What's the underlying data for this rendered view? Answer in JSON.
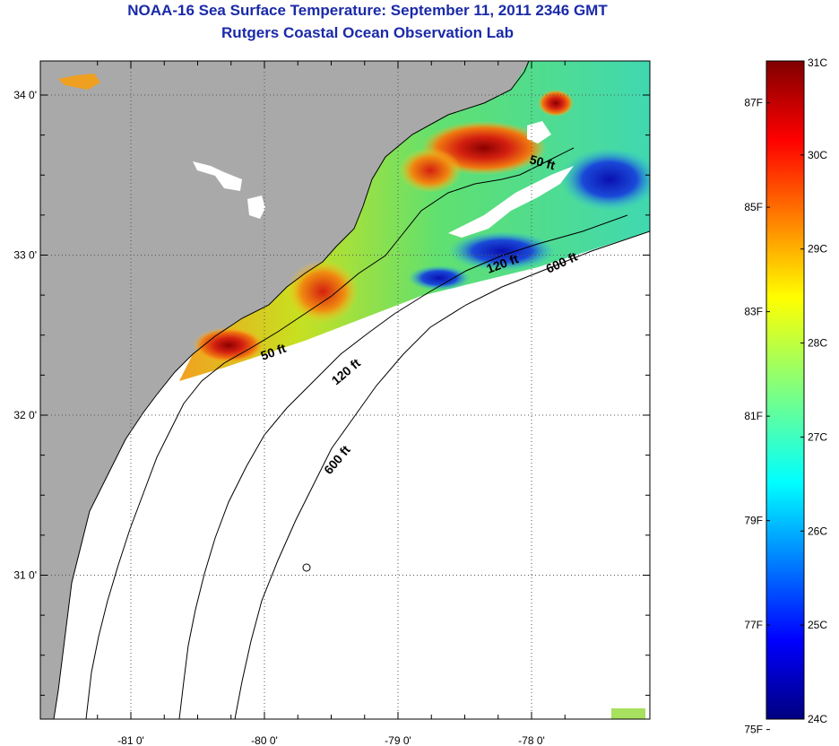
{
  "title": "NOAA-16 Sea Surface Temperature:  September 11, 2011 2346 GMT",
  "subtitle": "Rutgers Coastal Ocean Observation Lab",
  "map": {
    "lon_ticks": [
      {
        "value": -81,
        "label": "-81 0'"
      },
      {
        "value": -80,
        "label": "-80 0'"
      },
      {
        "value": -79,
        "label": "-79 0'"
      },
      {
        "value": -78,
        "label": "-78 0'"
      }
    ],
    "lat_ticks": [
      {
        "value": 34,
        "label": "34 0'"
      },
      {
        "value": 33,
        "label": "33 0'"
      },
      {
        "value": 32,
        "label": "32 0'"
      },
      {
        "value": 31,
        "label": "31 0'"
      }
    ],
    "contour_labels": [
      "50 ft",
      "120 ft",
      "600 ft",
      "50 ft",
      "120 ft",
      "600 ft"
    ],
    "colors": {
      "land": "#a9a9a9",
      "ocean_nodata": "#ffffff",
      "grid": "#555555"
    }
  },
  "colorbar": {
    "celsius": [
      "31C",
      "30C",
      "29C",
      "28C",
      "27C",
      "26C",
      "25C",
      "24C"
    ],
    "fahrenheit": [
      "87F",
      "85F",
      "83F",
      "81F",
      "79F",
      "77F",
      "75F"
    ],
    "celsius_range": [
      24,
      31
    ]
  }
}
